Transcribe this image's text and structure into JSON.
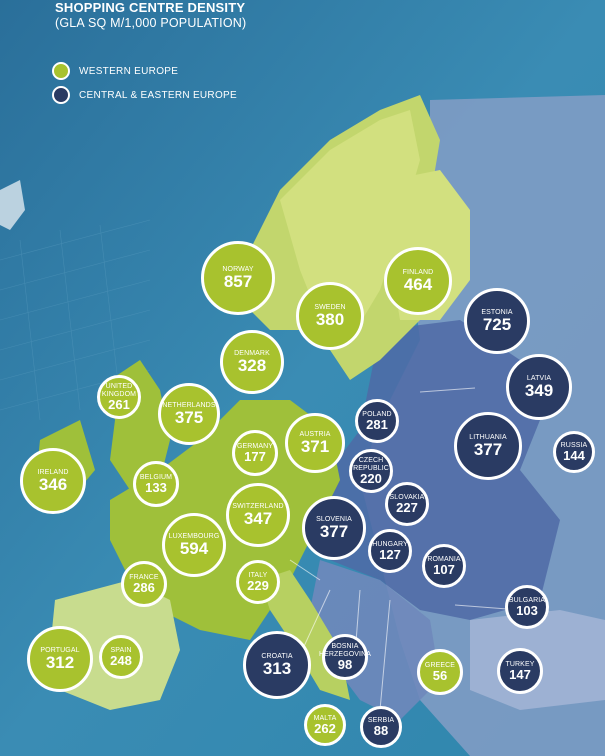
{
  "title": "SHOPPING CENTRE DENSITY",
  "subtitle": "(GLA SQ M/1,000 POPULATION)",
  "legend": [
    {
      "label": "WESTERN EUROPE",
      "color": "#a8c22e"
    },
    {
      "label": "CENTRAL & EASTERN EUROPE",
      "color": "#2a3b63"
    }
  ],
  "countries": [
    {
      "name": "NORWAY",
      "value": "857",
      "group": "we"
    },
    {
      "name": "FINLAND",
      "value": "464",
      "group": "we"
    },
    {
      "name": "SWEDEN",
      "value": "380",
      "group": "we"
    },
    {
      "name": "ESTONIA",
      "value": "725",
      "group": "cee"
    },
    {
      "name": "DENMARK",
      "value": "328",
      "group": "we"
    },
    {
      "name": "UNITED\nKINGDOM",
      "value": "261",
      "group": "we"
    },
    {
      "name": "NETHERLANDS",
      "value": "375",
      "group": "we"
    },
    {
      "name": "LATVIA",
      "value": "349",
      "group": "cee"
    },
    {
      "name": "POLAND",
      "value": "281",
      "group": "cee"
    },
    {
      "name": "AUSTRIA",
      "value": "371",
      "group": "we"
    },
    {
      "name": "LITHUANIA",
      "value": "377",
      "group": "cee"
    },
    {
      "name": "GERMANY",
      "value": "177",
      "group": "we"
    },
    {
      "name": "RUSSIA",
      "value": "144",
      "group": "cee"
    },
    {
      "name": "IRELAND",
      "value": "346",
      "group": "we"
    },
    {
      "name": "BELGIUM",
      "value": "133",
      "group": "we"
    },
    {
      "name": "CZECH\nREPUBLIC",
      "value": "220",
      "group": "cee"
    },
    {
      "name": "SLOVAKIA",
      "value": "227",
      "group": "cee"
    },
    {
      "name": "SWITZERLAND",
      "value": "347",
      "group": "we"
    },
    {
      "name": "SLOVENIA",
      "value": "377",
      "group": "cee"
    },
    {
      "name": "LUXEMBOURG",
      "value": "594",
      "group": "we"
    },
    {
      "name": "HUNGARY",
      "value": "127",
      "group": "cee"
    },
    {
      "name": "ROMANIA",
      "value": "107",
      "group": "cee"
    },
    {
      "name": "FRANCE",
      "value": "286",
      "group": "we"
    },
    {
      "name": "ITALY",
      "value": "229",
      "group": "we"
    },
    {
      "name": "BULGARIA",
      "value": "103",
      "group": "cee"
    },
    {
      "name": "PORTUGAL",
      "value": "312",
      "group": "we"
    },
    {
      "name": "SPAIN",
      "value": "248",
      "group": "we"
    },
    {
      "name": "CROATIA",
      "value": "313",
      "group": "cee"
    },
    {
      "name": "BOSNIA\nHERZEGOVINA",
      "value": "98",
      "group": "cee"
    },
    {
      "name": "GREECE",
      "value": "56",
      "group": "we"
    },
    {
      "name": "TURKEY",
      "value": "147",
      "group": "cee"
    },
    {
      "name": "MALTA",
      "value": "262",
      "group": "we"
    },
    {
      "name": "SERBIA",
      "value": "88",
      "group": "cee"
    }
  ]
}
